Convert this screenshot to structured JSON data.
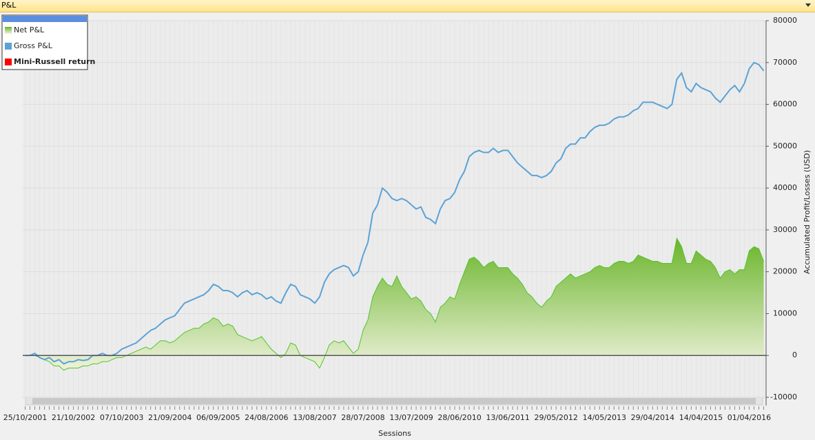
{
  "window_title": "P&L",
  "chart_data": {
    "type": "line",
    "y_label": "Accumulated Profit/Losses (USD)",
    "x_label": "Sessions",
    "categories": [
      "25/10/2001",
      null,
      null,
      null,
      null,
      null,
      null,
      null,
      null,
      null,
      "21/10/2002",
      null,
      null,
      null,
      null,
      null,
      null,
      null,
      null,
      null,
      "07/10/2003",
      null,
      null,
      null,
      null,
      null,
      null,
      null,
      null,
      null,
      "21/09/2004",
      null,
      null,
      null,
      null,
      null,
      null,
      null,
      null,
      null,
      "06/09/2005",
      null,
      null,
      null,
      null,
      null,
      null,
      null,
      null,
      null,
      "24/08/2006",
      null,
      null,
      null,
      null,
      null,
      null,
      null,
      null,
      null,
      "13/08/2007",
      null,
      null,
      null,
      null,
      null,
      null,
      null,
      null,
      null,
      "28/07/2008",
      null,
      null,
      null,
      null,
      null,
      null,
      null,
      null,
      null,
      "13/07/2009",
      null,
      null,
      null,
      null,
      null,
      null,
      null,
      null,
      null,
      "28/06/2010",
      null,
      null,
      null,
      null,
      null,
      null,
      null,
      null,
      null,
      "13/06/2011",
      null,
      null,
      null,
      null,
      null,
      null,
      null,
      null,
      null,
      "29/05/2012",
      null,
      null,
      null,
      null,
      null,
      null,
      null,
      null,
      null,
      "14/05/2013",
      null,
      null,
      null,
      null,
      null,
      null,
      null,
      null,
      null,
      "29/04/2014",
      null,
      null,
      null,
      null,
      null,
      null,
      null,
      null,
      null,
      "14/04/2015",
      null,
      null,
      null,
      null,
      null,
      null,
      null,
      null,
      null,
      "01/04/2016",
      null,
      null,
      null
    ],
    "series": [
      {
        "name": "Net P&L",
        "color": "#52c22c",
        "style": "area",
        "values": [
          0,
          0,
          0,
          -500,
          -1000,
          -1500,
          -2500,
          -2500,
          -3500,
          -3000,
          -3000,
          -3000,
          -2500,
          -2500,
          -2000,
          -2000,
          -1500,
          -1500,
          -1000,
          -500,
          -500,
          0,
          500,
          1000,
          1500,
          2000,
          1500,
          2500,
          3500,
          3500,
          3000,
          3500,
          4500,
          5500,
          6000,
          6500,
          6500,
          7500,
          8000,
          9000,
          8500,
          7000,
          7500,
          7000,
          5000,
          4500,
          4000,
          3500,
          4000,
          4500,
          3000,
          1500,
          500,
          -500,
          500,
          3000,
          2500,
          0,
          -500,
          -1000,
          -1500,
          -3000,
          -500,
          2500,
          3500,
          3000,
          3500,
          2000,
          500,
          1500,
          6000,
          8500,
          14000,
          16500,
          18500,
          17000,
          16500,
          19000,
          16500,
          15000,
          13500,
          14000,
          13000,
          11000,
          10000,
          8000,
          11500,
          12500,
          14000,
          13500,
          17000,
          20000,
          23000,
          23500,
          22500,
          21000,
          22000,
          22500,
          21000,
          21000,
          21000,
          19500,
          18500,
          17000,
          15000,
          14000,
          12500,
          11500,
          13000,
          14000,
          16500,
          17500,
          18500,
          19500,
          18500,
          19000,
          19500,
          20000,
          21000,
          21500,
          21000,
          21000,
          22000,
          22500,
          22500,
          22000,
          22500,
          24000,
          23500,
          23000,
          22500,
          22500,
          22000,
          22000,
          22000,
          28000,
          26000,
          22000,
          22000,
          25000,
          24000,
          23000,
          22500,
          21000,
          18500,
          20000,
          20500,
          19500,
          20500,
          20500,
          25000,
          26000,
          25500,
          22500
        ]
      },
      {
        "name": "Gross P&L",
        "color": "#5aa2d6",
        "style": "line",
        "values": [
          0,
          0,
          500,
          -500,
          -1000,
          -500,
          -1500,
          -1000,
          -2000,
          -1500,
          -1500,
          -1000,
          -1200,
          -1000,
          0,
          0,
          500,
          0,
          0,
          500,
          1500,
          2000,
          2500,
          3000,
          4000,
          5000,
          6000,
          6500,
          7500,
          8500,
          9000,
          9500,
          11000,
          12500,
          13000,
          13500,
          14000,
          14500,
          15500,
          17000,
          16500,
          15500,
          15500,
          15000,
          14000,
          15000,
          15500,
          14500,
          15000,
          14500,
          13500,
          14000,
          13000,
          12500,
          15000,
          17000,
          16500,
          14500,
          14000,
          13500,
          12500,
          14000,
          17500,
          19500,
          20500,
          21000,
          21500,
          21000,
          19000,
          20000,
          24000,
          27000,
          34000,
          36000,
          40000,
          39000,
          37500,
          37000,
          37500,
          37000,
          36000,
          35000,
          35500,
          33000,
          32500,
          31500,
          35000,
          37000,
          37500,
          39000,
          42000,
          44000,
          47500,
          48500,
          49000,
          48500,
          48500,
          49500,
          48500,
          49000,
          49000,
          47500,
          46000,
          45000,
          44000,
          43000,
          43000,
          42500,
          43000,
          44000,
          46000,
          47000,
          49500,
          50500,
          50500,
          52000,
          52000,
          53500,
          54500,
          55000,
          55000,
          55500,
          56500,
          57000,
          57000,
          57500,
          58500,
          59000,
          60500,
          60500,
          60500,
          60000,
          59500,
          59000,
          60000,
          66000,
          67500,
          64000,
          63000,
          65000,
          64000,
          63500,
          63000,
          61500,
          60500,
          62000,
          63500,
          64500,
          63000,
          65000,
          68500,
          70000,
          69500,
          68000
        ]
      },
      {
        "name": "Mini-Russell return",
        "color": "#ff0000",
        "style": "line"
      }
    ],
    "ylim": [
      -10000,
      80000
    ],
    "yticks": [
      -10000,
      0,
      10000,
      20000,
      30000,
      40000,
      50000,
      60000,
      70000,
      80000
    ],
    "grid": true,
    "legend": "upper left"
  }
}
